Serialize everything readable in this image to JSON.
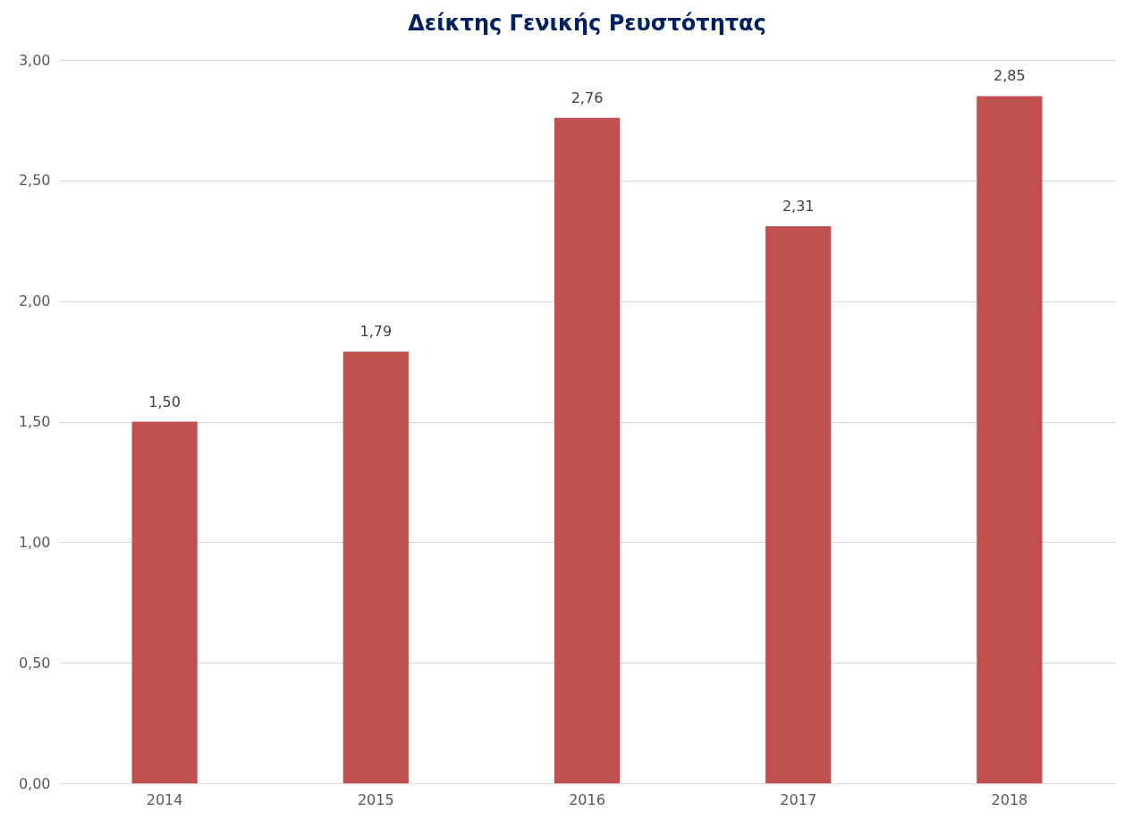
{
  "chart_data": {
    "type": "bar",
    "title": "Δείκτης Γενικής Ρευστότητας",
    "categories": [
      "2014",
      "2015",
      "2016",
      "2017",
      "2018"
    ],
    "values": [
      1.5,
      1.79,
      2.76,
      2.31,
      2.85
    ],
    "value_labels": [
      "1,50",
      "1,79",
      "2,76",
      "2,31",
      "2,85"
    ],
    "color": "#c0504d",
    "ylim": [
      0,
      3
    ],
    "yticks": [
      {
        "value": 0,
        "label": "0,00"
      },
      {
        "value": 0.5,
        "label": "0,50"
      },
      {
        "value": 1,
        "label": "1,00"
      },
      {
        "value": 1.5,
        "label": "1,50"
      },
      {
        "value": 2,
        "label": "2,00"
      },
      {
        "value": 2.5,
        "label": "2,50"
      },
      {
        "value": 3,
        "label": "3,00"
      }
    ],
    "grid": "y"
  }
}
